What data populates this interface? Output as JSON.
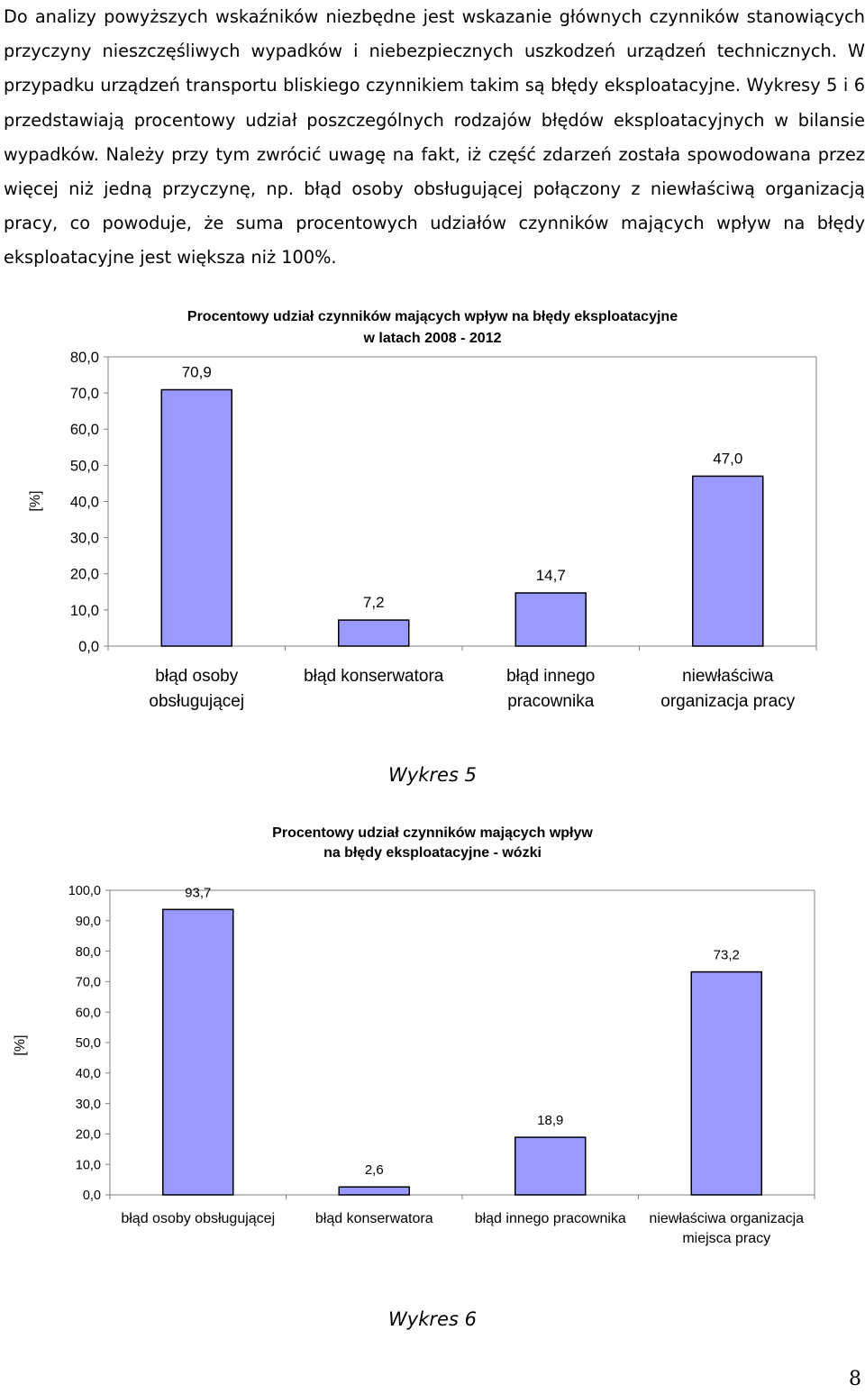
{
  "paragraph": "Do analizy powyższych wskaźników niezbędne jest wskazanie głównych czynników stanowiących przyczyny nieszczęśliwych wypadków i niebezpiecznych uszkodzeń urządzeń technicznych. W przypadku urządzeń transportu bliskiego czynnikiem takim są błędy eksploatacyjne. Wykresy 5 i 6 przedstawiają procentowy udział poszczególnych rodzajów błędów eksploatacyjnych w bilansie wypadków. Należy przy tym zwrócić uwagę na fakt, iż część zdarzeń została spowodowana przez więcej niż jedną przyczynę, np. błąd osoby obsługującej połączony z niewłaściwą organizacją pracy, co powoduje, że suma procentowych udziałów czynników mających wpływ na błędy eksploatacyjne jest większa niż 100%.",
  "captions": {
    "chart1": "Wykres 5",
    "chart2": "Wykres 6"
  },
  "page_number": "8",
  "colors": {
    "bar_fill": "#9999ff",
    "bar_stroke": "#000000",
    "axis": "#808080"
  },
  "chart_data": [
    {
      "type": "bar",
      "title": [
        "Procentowy udział czynników mających wpływ na błędy eksploatacyjne",
        "w latach 2008 - 2012"
      ],
      "ylabel": "[%]",
      "xlabel": "",
      "categories": [
        [
          "błąd osoby",
          "obsługującej"
        ],
        [
          "błąd konserwatora"
        ],
        [
          "błąd innego",
          "pracownika"
        ],
        [
          "niewłaściwa",
          "organizacja pracy"
        ]
      ],
      "values": [
        70.9,
        7.2,
        14.7,
        47.0
      ],
      "value_labels": [
        "70,9",
        "7,2",
        "14,7",
        "47,0"
      ],
      "ylim": [
        0,
        80
      ],
      "yticks": [
        "0,0",
        "10,0",
        "20,0",
        "30,0",
        "40,0",
        "50,0",
        "60,0",
        "70,0",
        "80,0"
      ],
      "grid": false,
      "legend": "none"
    },
    {
      "type": "bar",
      "title": [
        "Procentowy udział czynników mających wpływ",
        "na błędy eksploatacyjne - wózki"
      ],
      "ylabel": "[%]",
      "xlabel": "",
      "categories": [
        [
          "błąd osoby obsługującej"
        ],
        [
          "błąd konserwatora"
        ],
        [
          "błąd innego pracownika"
        ],
        [
          "niewłaściwa organizacja",
          "miejsca pracy"
        ]
      ],
      "values": [
        93.7,
        2.6,
        18.9,
        73.2
      ],
      "value_labels": [
        "93,7",
        "2,6",
        "18,9",
        "73,2"
      ],
      "ylim": [
        0,
        100
      ],
      "yticks": [
        "0,0",
        "10,0",
        "20,0",
        "30,0",
        "40,0",
        "50,0",
        "60,0",
        "70,0",
        "80,0",
        "90,0",
        "100,0"
      ],
      "grid": false,
      "legend": "none"
    }
  ]
}
